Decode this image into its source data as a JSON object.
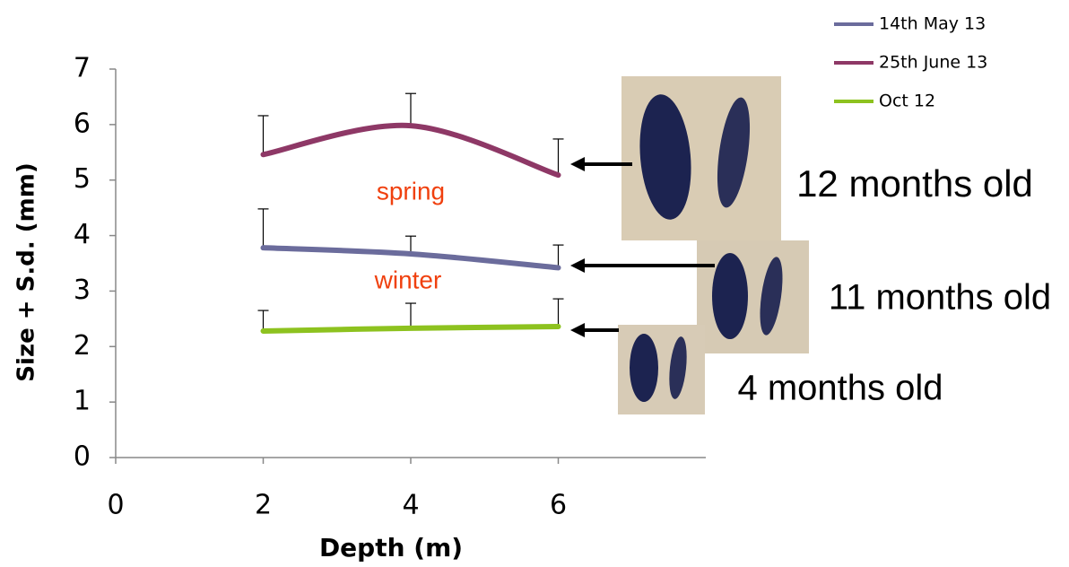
{
  "chart_data": {
    "type": "line",
    "x_label": "Depth (m)",
    "y_label": "Size + S.d. (mm)",
    "x": [
      2,
      4,
      6
    ],
    "series": [
      {
        "name": "14th May 13",
        "color": "#6b6c9c",
        "values": [
          3.78,
          3.67,
          3.42
        ],
        "errors": [
          0.7,
          0.32,
          0.41
        ]
      },
      {
        "name": "25th June 13",
        "color": "#8e3866",
        "values": [
          5.46,
          5.98,
          5.09
        ],
        "errors": [
          0.7,
          0.58,
          0.65
        ]
      },
      {
        "name": "Oct 12",
        "color": "#8dc21f",
        "values": [
          2.28,
          2.33,
          2.36
        ],
        "errors": [
          0.37,
          0.45,
          0.5
        ]
      }
    ],
    "xlim": [
      0,
      8
    ],
    "xticks": [
      0,
      2,
      4,
      6
    ],
    "ylim": [
      0,
      7
    ],
    "yticks": [
      0,
      1,
      2,
      3,
      4,
      5,
      6,
      7
    ],
    "grid": false,
    "legend": "upper right",
    "annotations": [
      "spring",
      "winter",
      "12 months old",
      "11 months old",
      "4 months old"
    ]
  }
}
